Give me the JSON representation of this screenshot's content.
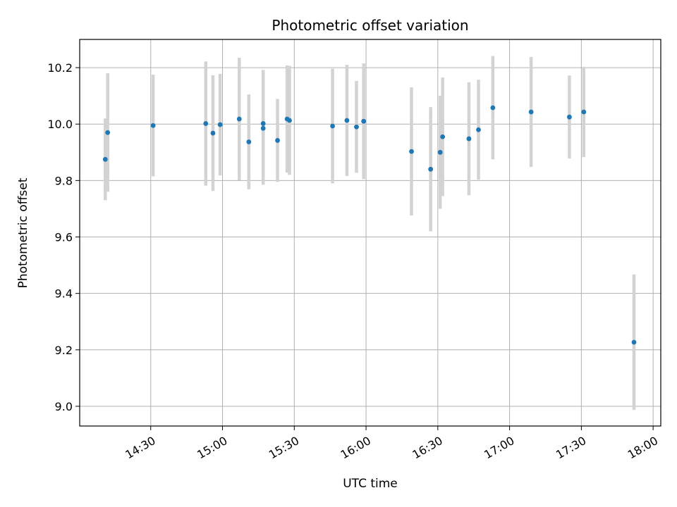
{
  "chart_data": {
    "type": "scatter",
    "title": "Photometric offset variation",
    "xlabel": "UTC time",
    "ylabel": "Photometric offset",
    "x_ticks": [
      "14:30",
      "15:00",
      "15:30",
      "16:00",
      "16:30",
      "17:00",
      "17:30",
      "18:00"
    ],
    "x_tick_minutes": [
      870,
      900,
      930,
      960,
      990,
      1020,
      1050,
      1080
    ],
    "xlim_minutes": [
      840.3,
      1083.2
    ],
    "y_ticks": [
      "9.0",
      "9.2",
      "9.4",
      "9.6",
      "9.8",
      "10.0",
      "10.2"
    ],
    "y_tick_values": [
      9.0,
      9.2,
      9.4,
      9.6,
      9.8,
      10.0,
      10.2
    ],
    "ylim": [
      8.93,
      10.3
    ],
    "grid": true,
    "colors": {
      "point": "#1f77b4",
      "errorbar": "#d3d3d3",
      "grid": "#b0b0b0"
    },
    "series": [
      {
        "points": [
          {
            "x": "14:11",
            "y": 9.875,
            "err": 0.145
          },
          {
            "x": "14:12",
            "y": 9.97,
            "err": 0.21
          },
          {
            "x": "14:31",
            "y": 9.995,
            "err": 0.18
          },
          {
            "x": "14:53",
            "y": 10.002,
            "err": 0.22
          },
          {
            "x": "14:56",
            "y": 9.968,
            "err": 0.205
          },
          {
            "x": "14:59",
            "y": 9.998,
            "err": 0.18
          },
          {
            "x": "15:07",
            "y": 10.018,
            "err": 0.217
          },
          {
            "x": "15:11",
            "y": 9.937,
            "err": 0.168
          },
          {
            "x": "15:17",
            "y": 9.985,
            "err": 0.2
          },
          {
            "x": "15:17",
            "y": 10.002,
            "err": 0.19
          },
          {
            "x": "15:23",
            "y": 9.942,
            "err": 0.147
          },
          {
            "x": "15:27",
            "y": 10.018,
            "err": 0.19
          },
          {
            "x": "15:28",
            "y": 10.013,
            "err": 0.193
          },
          {
            "x": "15:46",
            "y": 9.993,
            "err": 0.203
          },
          {
            "x": "15:52",
            "y": 10.013,
            "err": 0.197
          },
          {
            "x": "15:56",
            "y": 9.99,
            "err": 0.163
          },
          {
            "x": "15:59",
            "y": 10.01,
            "err": 0.205
          },
          {
            "x": "16:19",
            "y": 9.903,
            "err": 0.227
          },
          {
            "x": "16:27",
            "y": 9.84,
            "err": 0.22
          },
          {
            "x": "16:31",
            "y": 9.9,
            "err": 0.2
          },
          {
            "x": "16:32",
            "y": 9.955,
            "err": 0.21
          },
          {
            "x": "16:43",
            "y": 9.948,
            "err": 0.2
          },
          {
            "x": "16:47",
            "y": 9.98,
            "err": 0.177
          },
          {
            "x": "16:53",
            "y": 10.058,
            "err": 0.183
          },
          {
            "x": "17:09",
            "y": 10.043,
            "err": 0.195
          },
          {
            "x": "17:25",
            "y": 10.025,
            "err": 0.147
          },
          {
            "x": "17:31",
            "y": 10.043,
            "err": 0.16
          },
          {
            "x": "17:52",
            "y": 9.227,
            "err": 0.24
          }
        ]
      }
    ]
  }
}
